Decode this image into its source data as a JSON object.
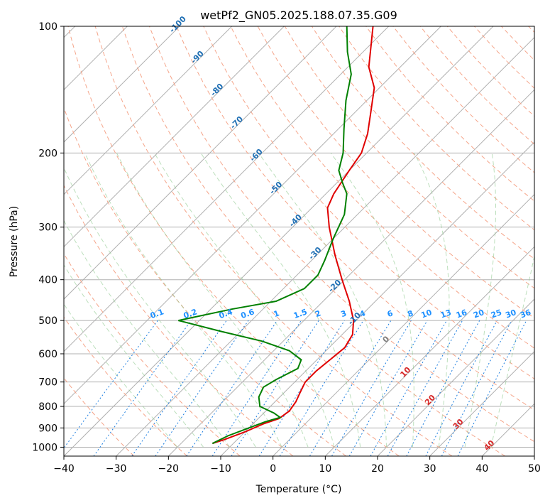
{
  "chart_data": {
    "type": "line",
    "title": "wetPf2_GN05.2025.188.07.35.G09",
    "xlabel": "Temperature (°C)",
    "ylabel": "Pressure (hPa)",
    "xlim": [
      -40,
      50
    ],
    "ylim_hpa": [
      1050,
      100
    ],
    "y_scale": "log",
    "grid": true,
    "x_ticks": [
      -40,
      -30,
      -20,
      -10,
      0,
      10,
      20,
      30,
      40,
      50
    ],
    "y_ticks": [
      100,
      200,
      300,
      400,
      500,
      600,
      700,
      800,
      900,
      1000
    ],
    "isotherm_skew_labels": [
      "-100",
      "-90",
      "-80",
      "-70",
      "-60",
      "-50",
      "-40",
      "-30",
      "-20",
      "-10",
      "0",
      "10",
      "20",
      "30",
      "40"
    ],
    "mixing_ratio_labels": [
      "0.1",
      "0.2",
      "0.4",
      "0.6",
      "1",
      "1.5",
      "2",
      "3",
      "4",
      "6",
      "8",
      "10",
      "13",
      "16",
      "20",
      "25",
      "30",
      "36"
    ],
    "series": [
      {
        "name": "",
        "color": "#e00000",
        "points": [
          {
            "p": 980,
            "t": -14
          },
          {
            "p": 960,
            "t": -12.5
          },
          {
            "p": 920,
            "t": -10
          },
          {
            "p": 880,
            "t": -8
          },
          {
            "p": 855,
            "t": -6
          },
          {
            "p": 820,
            "t": -5.5
          },
          {
            "p": 780,
            "t": -6
          },
          {
            "p": 740,
            "t": -7
          },
          {
            "p": 700,
            "t": -8
          },
          {
            "p": 660,
            "t": -8
          },
          {
            "p": 620,
            "t": -7.5
          },
          {
            "p": 580,
            "t": -7
          },
          {
            "p": 540,
            "t": -8
          },
          {
            "p": 500,
            "t": -10.5
          },
          {
            "p": 450,
            "t": -15
          },
          {
            "p": 400,
            "t": -20.5
          },
          {
            "p": 350,
            "t": -26.5
          },
          {
            "p": 300,
            "t": -33
          },
          {
            "p": 270,
            "t": -37
          },
          {
            "p": 250,
            "t": -38.5
          },
          {
            "p": 220,
            "t": -40
          },
          {
            "p": 200,
            "t": -41
          },
          {
            "p": 180,
            "t": -43.5
          },
          {
            "p": 160,
            "t": -47
          },
          {
            "p": 140,
            "t": -51
          },
          {
            "p": 125,
            "t": -56
          },
          {
            "p": 110,
            "t": -60
          },
          {
            "p": 100,
            "t": -63
          }
        ]
      },
      {
        "name": "",
        "color": "#008000",
        "points": [
          {
            "p": 980,
            "t": -14
          },
          {
            "p": 940,
            "t": -12.5
          },
          {
            "p": 900,
            "t": -10
          },
          {
            "p": 870,
            "t": -8
          },
          {
            "p": 850,
            "t": -6
          },
          {
            "p": 830,
            "t": -8
          },
          {
            "p": 800,
            "t": -12
          },
          {
            "p": 760,
            "t": -14
          },
          {
            "p": 720,
            "t": -15
          },
          {
            "p": 690,
            "t": -14
          },
          {
            "p": 650,
            "t": -12
          },
          {
            "p": 620,
            "t": -13
          },
          {
            "p": 590,
            "t": -17
          },
          {
            "p": 560,
            "t": -24
          },
          {
            "p": 530,
            "t": -34
          },
          {
            "p": 500,
            "t": -44
          },
          {
            "p": 470,
            "t": -36
          },
          {
            "p": 450,
            "t": -29
          },
          {
            "p": 420,
            "t": -26
          },
          {
            "p": 390,
            "t": -26
          },
          {
            "p": 360,
            "t": -27.5
          },
          {
            "p": 320,
            "t": -30
          },
          {
            "p": 280,
            "t": -32.5
          },
          {
            "p": 250,
            "t": -36
          },
          {
            "p": 235,
            "t": -39
          },
          {
            "p": 220,
            "t": -42
          },
          {
            "p": 200,
            "t": -44.5
          },
          {
            "p": 175,
            "t": -49
          },
          {
            "p": 150,
            "t": -54
          },
          {
            "p": 130,
            "t": -58
          },
          {
            "p": 115,
            "t": -63
          },
          {
            "p": 100,
            "t": -68
          }
        ]
      }
    ]
  }
}
